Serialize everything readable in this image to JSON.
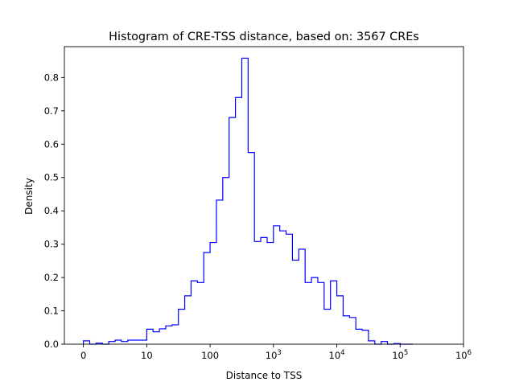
{
  "chart_data": {
    "type": "histogram",
    "title": "Histogram of CRE-TSS distance, based on: 3567 CREs",
    "xlabel": "Distance to TSS",
    "ylabel": "Density",
    "x_scale": "symlog",
    "xlim": [
      -0.3,
      6.0
    ],
    "ylim": [
      0.0,
      0.8925
    ],
    "x_ticks": [
      {
        "value": 0,
        "label": "0"
      },
      {
        "value": 10,
        "label": "10"
      },
      {
        "value": 100,
        "label": "100"
      },
      {
        "value": 1000,
        "label": "10",
        "sup": "3"
      },
      {
        "value": 10000,
        "label": "10",
        "sup": "4"
      },
      {
        "value": 100000,
        "label": "10",
        "sup": "5"
      },
      {
        "value": 1000000,
        "label": "10",
        "sup": "6"
      }
    ],
    "y_ticks": [
      0.0,
      0.1,
      0.2,
      0.3,
      0.4,
      0.5,
      0.6,
      0.7,
      0.8
    ],
    "histtype": "step",
    "line_color": "#0000ff",
    "bin_width_log10": 0.1,
    "bins_log10_start": 0.0,
    "density": [
      0.01,
      0.0,
      0.003,
      0.0,
      0.008,
      0.012,
      0.008,
      0.012,
      0.012,
      0.012,
      0.045,
      0.037,
      0.046,
      0.055,
      0.058,
      0.105,
      0.145,
      0.19,
      0.185,
      0.275,
      0.305,
      0.432,
      0.5,
      0.68,
      0.74,
      0.858,
      0.575,
      0.308,
      0.32,
      0.305,
      0.355,
      0.34,
      0.33,
      0.252,
      0.285,
      0.185,
      0.2,
      0.185,
      0.105,
      0.19,
      0.145,
      0.085,
      0.08,
      0.045,
      0.042,
      0.01,
      0.0,
      0.008,
      0.0,
      0.002,
      0.0,
      0.0
    ],
    "grid": false,
    "legend": "none"
  }
}
